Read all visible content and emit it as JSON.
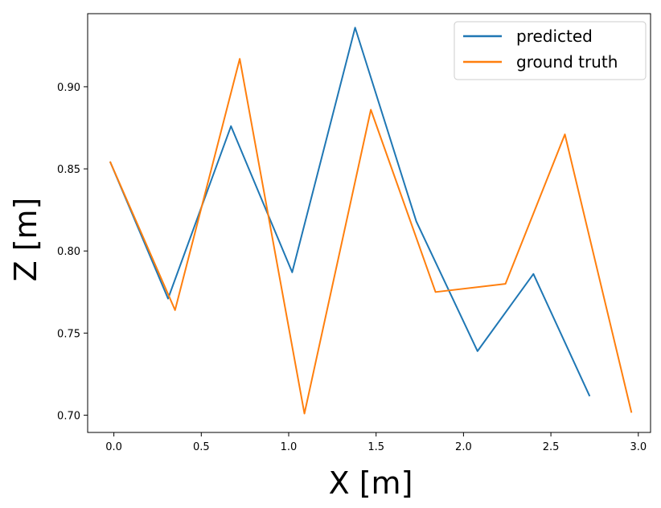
{
  "chart_data": {
    "type": "line",
    "title": "",
    "xlabel": "X [m]",
    "ylabel": "Z [m]",
    "xlim": [
      -0.15,
      3.07
    ],
    "ylim": [
      0.6895,
      0.9445
    ],
    "xticks": [
      0.0,
      0.5,
      1.0,
      1.5,
      2.0,
      2.5,
      3.0
    ],
    "xtick_labels": [
      "0.0",
      "0.5",
      "1.0",
      "1.5",
      "2.0",
      "2.5",
      "3.0"
    ],
    "yticks": [
      0.7,
      0.75,
      0.8,
      0.85,
      0.9
    ],
    "ytick_labels": [
      "0.70",
      "0.75",
      "0.80",
      "0.85",
      "0.90"
    ],
    "grid": false,
    "legend_position": "top-right",
    "series": [
      {
        "name": "predicted",
        "color": "#1f77b4",
        "x": [
          -0.02,
          0.31,
          0.67,
          1.02,
          1.38,
          1.73,
          2.08,
          2.4,
          2.72
        ],
        "y": [
          0.854,
          0.771,
          0.876,
          0.787,
          0.936,
          0.818,
          0.739,
          0.786,
          0.712
        ]
      },
      {
        "name": "ground truth",
        "color": "#ff7f0e",
        "x": [
          -0.02,
          0.35,
          0.72,
          1.09,
          1.47,
          1.84,
          2.24,
          2.58,
          2.96
        ],
        "y": [
          0.854,
          0.764,
          0.917,
          0.701,
          0.886,
          0.775,
          0.78,
          0.871,
          0.702
        ]
      }
    ]
  }
}
